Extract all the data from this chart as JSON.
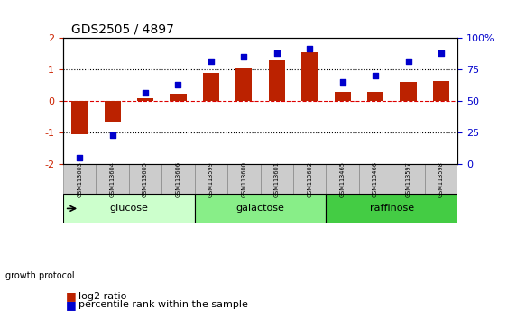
{
  "title": "GDS2505 / 4897",
  "samples": [
    "GSM113603",
    "GSM113604",
    "GSM113605",
    "GSM113606",
    "GSM113599",
    "GSM113600",
    "GSM113601",
    "GSM113602",
    "GSM113465",
    "GSM113466",
    "GSM113597",
    "GSM113598"
  ],
  "log2_ratio": [
    -1.05,
    -0.65,
    0.1,
    0.25,
    0.9,
    1.05,
    1.3,
    1.55,
    0.3,
    0.3,
    0.6,
    0.65
  ],
  "percentile": [
    5,
    23,
    57,
    63,
    82,
    85,
    88,
    92,
    65,
    70,
    82,
    88
  ],
  "groups": [
    {
      "label": "glucose",
      "color": "#ccffcc",
      "start": 0,
      "end": 4
    },
    {
      "label": "galactose",
      "color": "#88ee88",
      "start": 4,
      "end": 8
    },
    {
      "label": "raffinose",
      "color": "#44cc44",
      "start": 8,
      "end": 12
    }
  ],
  "bar_color": "#bb2200",
  "dot_color": "#0000cc",
  "ylim_left": [
    -2,
    2
  ],
  "ylim_right": [
    0,
    100
  ],
  "yticks_left": [
    -2,
    -1,
    0,
    1,
    2
  ],
  "yticks_right": [
    0,
    25,
    50,
    75,
    100
  ],
  "ytick_labels_right": [
    "0",
    "25",
    "50",
    "75",
    "100%"
  ],
  "hlines_dotted": [
    -1,
    1
  ],
  "hline_dashed": 0,
  "legend_log2": "log2 ratio",
  "legend_pct": "percentile rank within the sample",
  "growth_label": "growth protocol"
}
